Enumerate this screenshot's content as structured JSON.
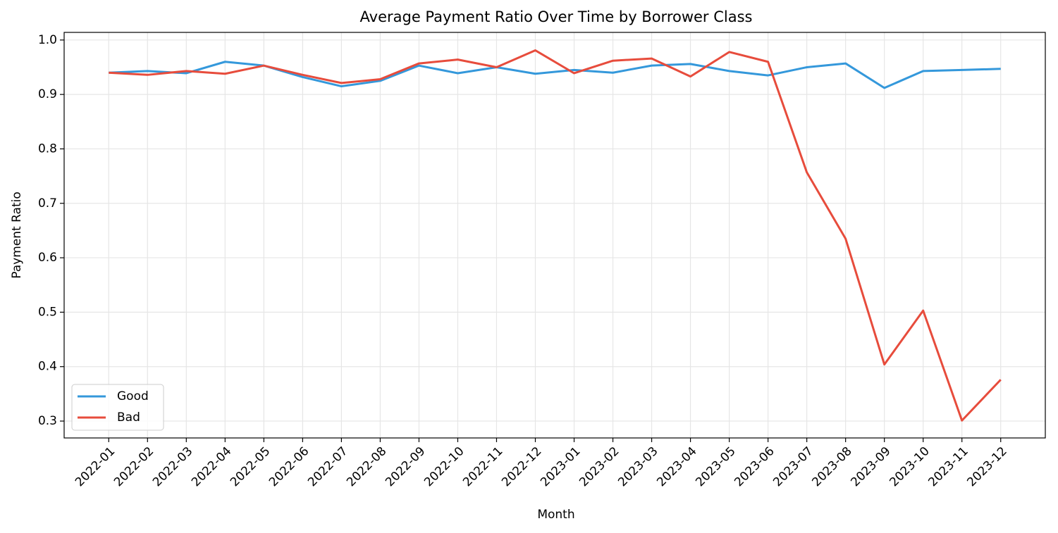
{
  "chart_data": {
    "type": "line",
    "title": "Average Payment Ratio Over Time by Borrower Class",
    "x_label": "Month",
    "y_label": "Payment Ratio",
    "categories": [
      "2022-01",
      "2022-02",
      "2022-03",
      "2022-04",
      "2022-05",
      "2022-06",
      "2022-07",
      "2022-08",
      "2022-09",
      "2022-10",
      "2022-11",
      "2022-12",
      "2023-01",
      "2023-02",
      "2023-03",
      "2023-04",
      "2023-05",
      "2023-06",
      "2023-07",
      "2023-08",
      "2023-09",
      "2023-10",
      "2023-11",
      "2023-12"
    ],
    "series": [
      {
        "name": "Good",
        "color": "#3498db",
        "values": [
          0.94,
          0.943,
          0.939,
          0.96,
          0.953,
          0.932,
          0.915,
          0.925,
          0.953,
          0.939,
          0.95,
          0.938,
          0.945,
          0.94,
          0.953,
          0.956,
          0.943,
          0.935,
          0.95,
          0.957,
          0.912,
          0.943,
          0.945,
          0.947
        ]
      },
      {
        "name": "Bad",
        "color": "#e74c3c",
        "values": [
          0.94,
          0.936,
          0.943,
          0.938,
          0.953,
          0.936,
          0.921,
          0.928,
          0.957,
          0.964,
          0.95,
          0.981,
          0.939,
          0.962,
          0.966,
          0.933,
          0.978,
          0.96,
          0.757,
          0.635,
          0.404,
          0.503,
          0.301,
          0.376
        ]
      }
    ],
    "ylim": [
      0.269,
      1.014
    ],
    "yticks": [
      0.3,
      0.4,
      0.5,
      0.6,
      0.7,
      0.8,
      0.9,
      {
        "value": 1,
        "label": "1.0"
      }
    ],
    "grid": true,
    "legend": "lower left"
  }
}
